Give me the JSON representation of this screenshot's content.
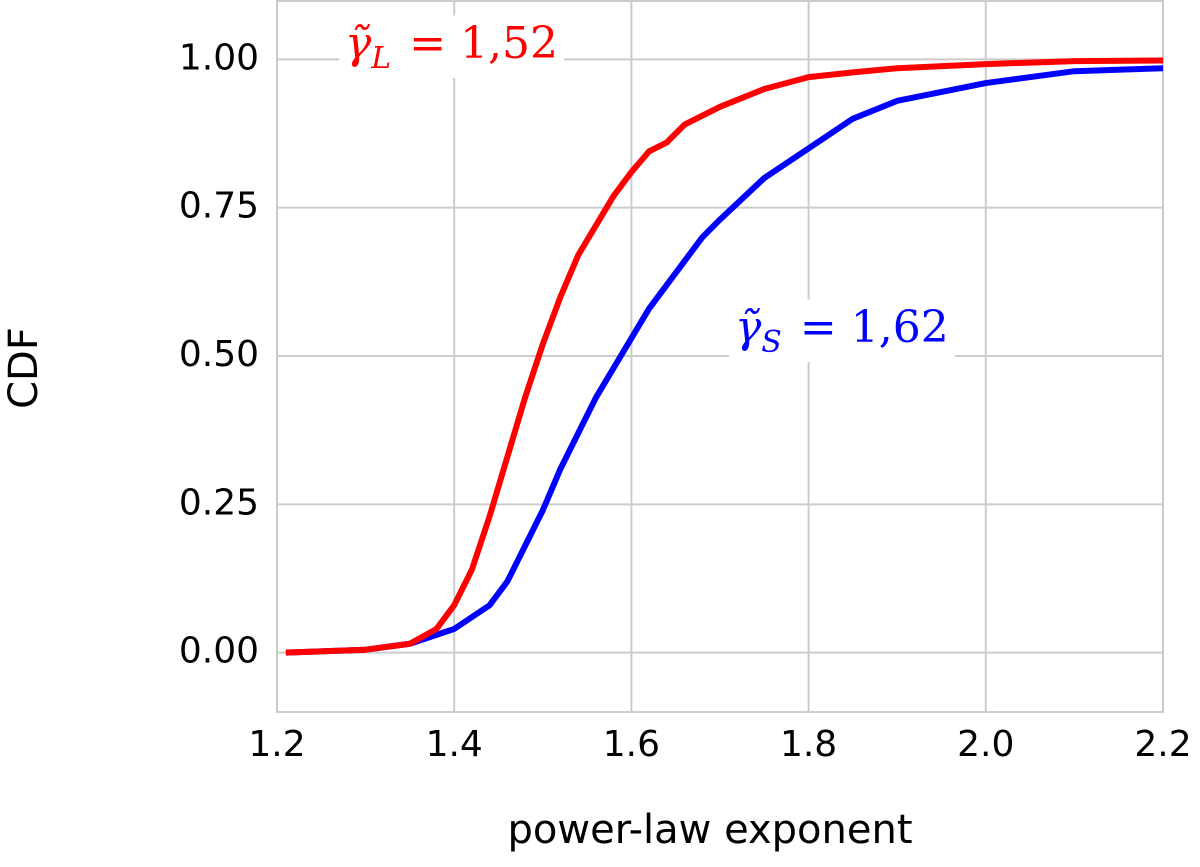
{
  "chart_data": {
    "type": "line",
    "xlabel": "power-law exponent",
    "ylabel": "CDF",
    "x": [
      1.21,
      1.3,
      1.35,
      1.38,
      1.4,
      1.42,
      1.44,
      1.46,
      1.48,
      1.5,
      1.52,
      1.54,
      1.56,
      1.58,
      1.6,
      1.62,
      1.64,
      1.66,
      1.68,
      1.7,
      1.75,
      1.8,
      1.85,
      1.9,
      2.0,
      2.1,
      2.2
    ],
    "series": [
      {
        "color": "#0000ff",
        "values": [
          0,
          0.005,
          0.015,
          0.03,
          0.04,
          0.06,
          0.08,
          0.12,
          0.18,
          0.24,
          0.31,
          0.37,
          0.43,
          0.48,
          0.53,
          0.58,
          0.62,
          0.66,
          0.7,
          0.73,
          0.8,
          0.85,
          0.9,
          0.93,
          0.96,
          0.98,
          0.985
        ]
      },
      {
        "color": "#ff0000",
        "values": [
          0,
          0.005,
          0.015,
          0.04,
          0.08,
          0.14,
          0.23,
          0.33,
          0.43,
          0.52,
          0.6,
          0.67,
          0.72,
          0.77,
          0.81,
          0.845,
          0.86,
          0.89,
          0.905,
          0.92,
          0.95,
          0.97,
          0.978,
          0.985,
          0.992,
          0.997,
          0.998
        ]
      }
    ],
    "annotations": [
      {
        "symbol": "γ̃",
        "subscript": "L",
        "text": "= 1,52",
        "color": "#ff0000"
      },
      {
        "symbol": "γ̃",
        "subscript": "S",
        "text": "= 1,62",
        "color": "#0000ff"
      }
    ],
    "xlim": [
      1.2,
      2.2
    ],
    "ylim": [
      -0.1,
      1.1
    ],
    "xticks": [
      1.2,
      1.4,
      1.6,
      1.8,
      {
        "value": 2.0,
        "label": "2.0"
      },
      2.2
    ],
    "yticks": [
      {
        "value": 0,
        "label": "0.00"
      },
      {
        "value": 0.25,
        "label": "0.25"
      },
      {
        "value": 0.5,
        "label": "0.50"
      },
      {
        "value": 0.75,
        "label": "0.75"
      },
      {
        "value": 1,
        "label": "1.00"
      }
    ],
    "grid": true
  }
}
